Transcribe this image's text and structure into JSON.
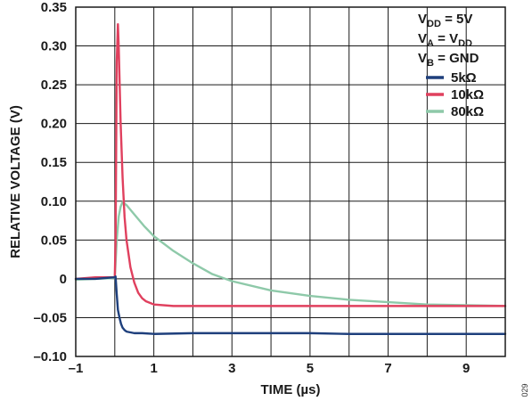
{
  "chart_data": {
    "type": "line",
    "title": "",
    "xlabel": "TIME (µs)",
    "ylabel": "RELATIVE VOLTAGE (V)",
    "xlim": [
      -1,
      10
    ],
    "ylim": [
      -0.1,
      0.35
    ],
    "x_ticks": [
      -1,
      1,
      3,
      5,
      7,
      9
    ],
    "x_tick_labels": [
      "–1",
      "1",
      "3",
      "5",
      "7",
      "9"
    ],
    "y_ticks": [
      0.35,
      0.3,
      0.25,
      0.2,
      0.15,
      0.1,
      0.05,
      0,
      -0.05,
      -0.1
    ],
    "y_tick_labels": [
      "0.35",
      "0.30",
      "0.25",
      "0.20",
      "0.15",
      "0.10",
      "0.05",
      "0",
      "–0.05",
      "–0.10"
    ],
    "grid": true,
    "legend_position": "top-right",
    "conditions": [
      {
        "main": "V",
        "sub": "DD",
        "rest": " = 5V",
        "sub2": ""
      },
      {
        "main": "V",
        "sub": "A",
        "rest": " = V",
        "sub2": "DD"
      },
      {
        "main": "V",
        "sub": "B",
        "rest": " = GND",
        "sub2": ""
      }
    ],
    "series": [
      {
        "name": "5kΩ",
        "color": "#1e3f7c",
        "x": [
          -1,
          -0.5,
          0,
          0.02,
          0.05,
          0.08,
          0.12,
          0.16,
          0.2,
          0.25,
          0.3,
          0.4,
          0.5,
          0.7,
          1,
          2,
          3,
          4,
          5,
          6,
          7,
          8,
          9,
          10
        ],
        "y": [
          0.0,
          0.0,
          0.002,
          0.003,
          -0.02,
          -0.04,
          -0.05,
          -0.058,
          -0.063,
          -0.066,
          -0.068,
          -0.069,
          -0.07,
          -0.07,
          -0.071,
          -0.07,
          -0.07,
          -0.07,
          -0.07,
          -0.071,
          -0.071,
          -0.071,
          -0.071,
          -0.071
        ]
      },
      {
        "name": "10kΩ",
        "color": "#e0405e",
        "x": [
          -1,
          -0.5,
          0,
          0.02,
          0.05,
          0.08,
          0.1,
          0.15,
          0.2,
          0.25,
          0.3,
          0.4,
          0.5,
          0.6,
          0.7,
          0.8,
          1,
          1.5,
          2,
          3,
          4,
          5,
          6,
          7,
          8,
          9,
          10
        ],
        "y": [
          0.0,
          0.002,
          0.002,
          0.05,
          0.28,
          0.328,
          0.3,
          0.2,
          0.13,
          0.08,
          0.05,
          0.015,
          -0.005,
          -0.018,
          -0.025,
          -0.029,
          -0.033,
          -0.035,
          -0.035,
          -0.035,
          -0.035,
          -0.035,
          -0.035,
          -0.035,
          -0.035,
          -0.035,
          -0.035
        ]
      },
      {
        "name": "80kΩ",
        "color": "#8ec9a9",
        "x": [
          -1,
          -0.5,
          0,
          0.05,
          0.1,
          0.15,
          0.2,
          0.3,
          0.5,
          0.75,
          1,
          1.5,
          2,
          2.5,
          3,
          4,
          5,
          6,
          7,
          8,
          9,
          10
        ],
        "y": [
          -0.001,
          0.0,
          0.001,
          0.05,
          0.08,
          0.093,
          0.099,
          0.095,
          0.083,
          0.068,
          0.055,
          0.036,
          0.02,
          0.006,
          -0.003,
          -0.015,
          -0.022,
          -0.027,
          -0.03,
          -0.033,
          -0.034,
          -0.035
        ]
      }
    ],
    "side_note": "029"
  }
}
